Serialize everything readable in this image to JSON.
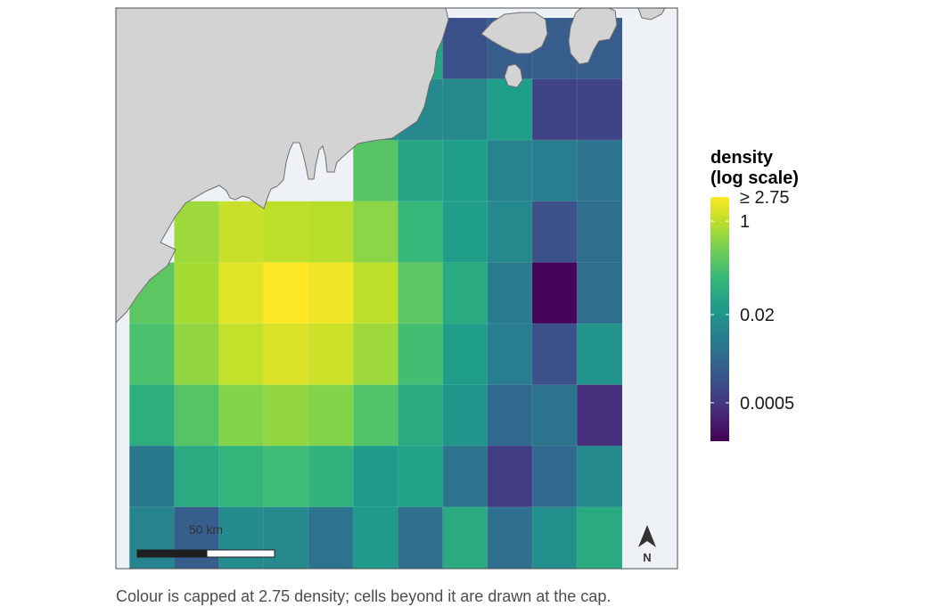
{
  "legend": {
    "title_line1": "density",
    "title_line2": "(log scale)",
    "scale": "log",
    "domain": [
      0.0001,
      2.75
    ],
    "breaks": [
      {
        "value": 2.75,
        "label": "≥ 2.75"
      },
      {
        "value": 1,
        "label": "1"
      },
      {
        "value": 0.02,
        "label": "0.02"
      },
      {
        "value": 0.0005,
        "label": "0.0005"
      }
    ],
    "palette": [
      "#440154",
      "#482878",
      "#3e4a89",
      "#31688e",
      "#26828e",
      "#1f9e89",
      "#35b779",
      "#6ece58",
      "#b5de2b",
      "#fde725"
    ]
  },
  "map": {
    "land_color": "#d3d3d3",
    "water_color": "#eef1f5",
    "scale_bar_label": "50 km",
    "north_label": "N"
  },
  "caption": "Colour is capped at 2.75 density; cells beyond it are drawn at the cap.",
  "grid": {
    "rows": 9,
    "cols": 12,
    "values": [
      [
        null,
        null,
        null,
        null,
        null,
        null,
        null,
        0.04,
        0.0012,
        0.002,
        0.002,
        0.002
      ],
      [
        null,
        null,
        null,
        null,
        null,
        null,
        0.02,
        0.012,
        0.012,
        0.03,
        0.0008,
        0.0008
      ],
      [
        null,
        null,
        null,
        null,
        null,
        null,
        0.18,
        0.04,
        0.03,
        0.01,
        0.008,
        0.005
      ],
      [
        null,
        null,
        0.6,
        1.2,
        1.0,
        0.9,
        0.45,
        0.09,
        0.03,
        0.012,
        0.0012,
        0.004
      ],
      [
        null,
        0.2,
        0.7,
        1.8,
        2.9,
        2.2,
        1.0,
        0.2,
        0.05,
        0.007,
        0.00011,
        0.004
      ],
      [
        null,
        0.14,
        0.5,
        1.1,
        1.6,
        1.3,
        0.6,
        0.12,
        0.03,
        0.008,
        0.0012,
        0.02
      ],
      [
        null,
        0.06,
        0.17,
        0.4,
        0.5,
        0.4,
        0.16,
        0.05,
        0.02,
        0.003,
        0.005,
        0.0004
      ],
      [
        null,
        0.006,
        0.05,
        0.08,
        0.11,
        0.07,
        0.025,
        0.035,
        0.005,
        0.0006,
        0.003,
        0.012
      ],
      [
        null,
        0.01,
        0.002,
        0.014,
        0.012,
        0.005,
        0.025,
        0.004,
        0.05,
        0.004,
        0.016,
        0.05
      ]
    ]
  }
}
